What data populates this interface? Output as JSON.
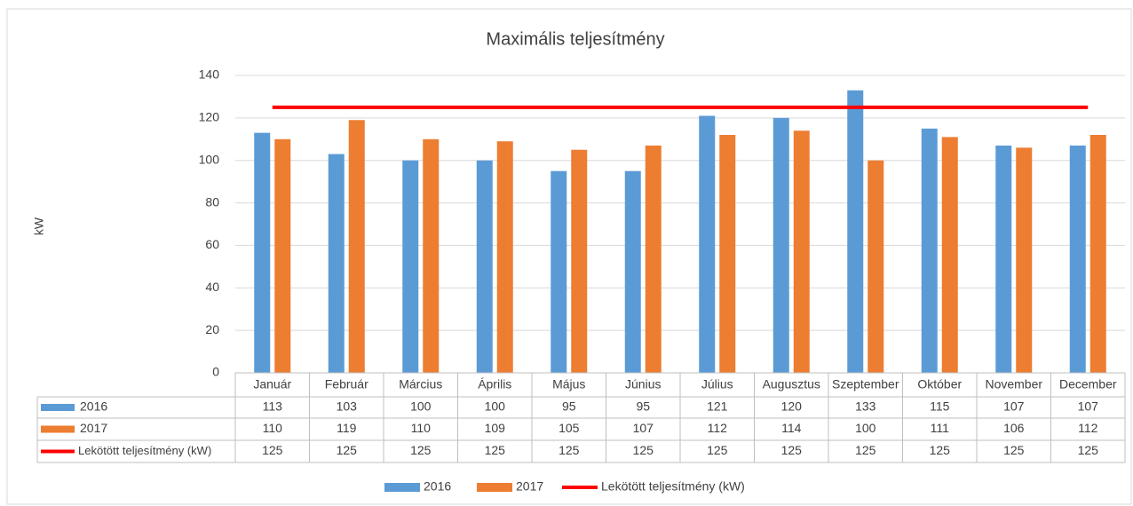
{
  "chart_data": {
    "type": "bar",
    "title": "Maximális teljesítmény",
    "y_label": "kW",
    "categories": [
      "Január",
      "Február",
      "Március",
      "Április",
      "Május",
      "Június",
      "Július",
      "Augusztus",
      "Szeptember",
      "Október",
      "November",
      "December"
    ],
    "series": [
      {
        "name": "2016",
        "color": "#5b9bd5",
        "values": [
          113,
          103,
          100,
          100,
          95,
          95,
          121,
          120,
          133,
          115,
          107,
          107
        ]
      },
      {
        "name": "2017",
        "color": "#ed7d31",
        "values": [
          110,
          119,
          110,
          109,
          105,
          107,
          112,
          114,
          100,
          111,
          106,
          112
        ]
      },
      {
        "name": "Lekötött teljesítmény (kW)",
        "color": "#ff0000",
        "type": "line",
        "values": [
          125,
          125,
          125,
          125,
          125,
          125,
          125,
          125,
          125,
          125,
          125,
          125
        ]
      }
    ],
    "ylim": [
      0,
      140
    ],
    "yticks": [
      0,
      20,
      40,
      60,
      80,
      100,
      120,
      140
    ],
    "grid": true,
    "legend": "bottom",
    "data_table": true
  }
}
